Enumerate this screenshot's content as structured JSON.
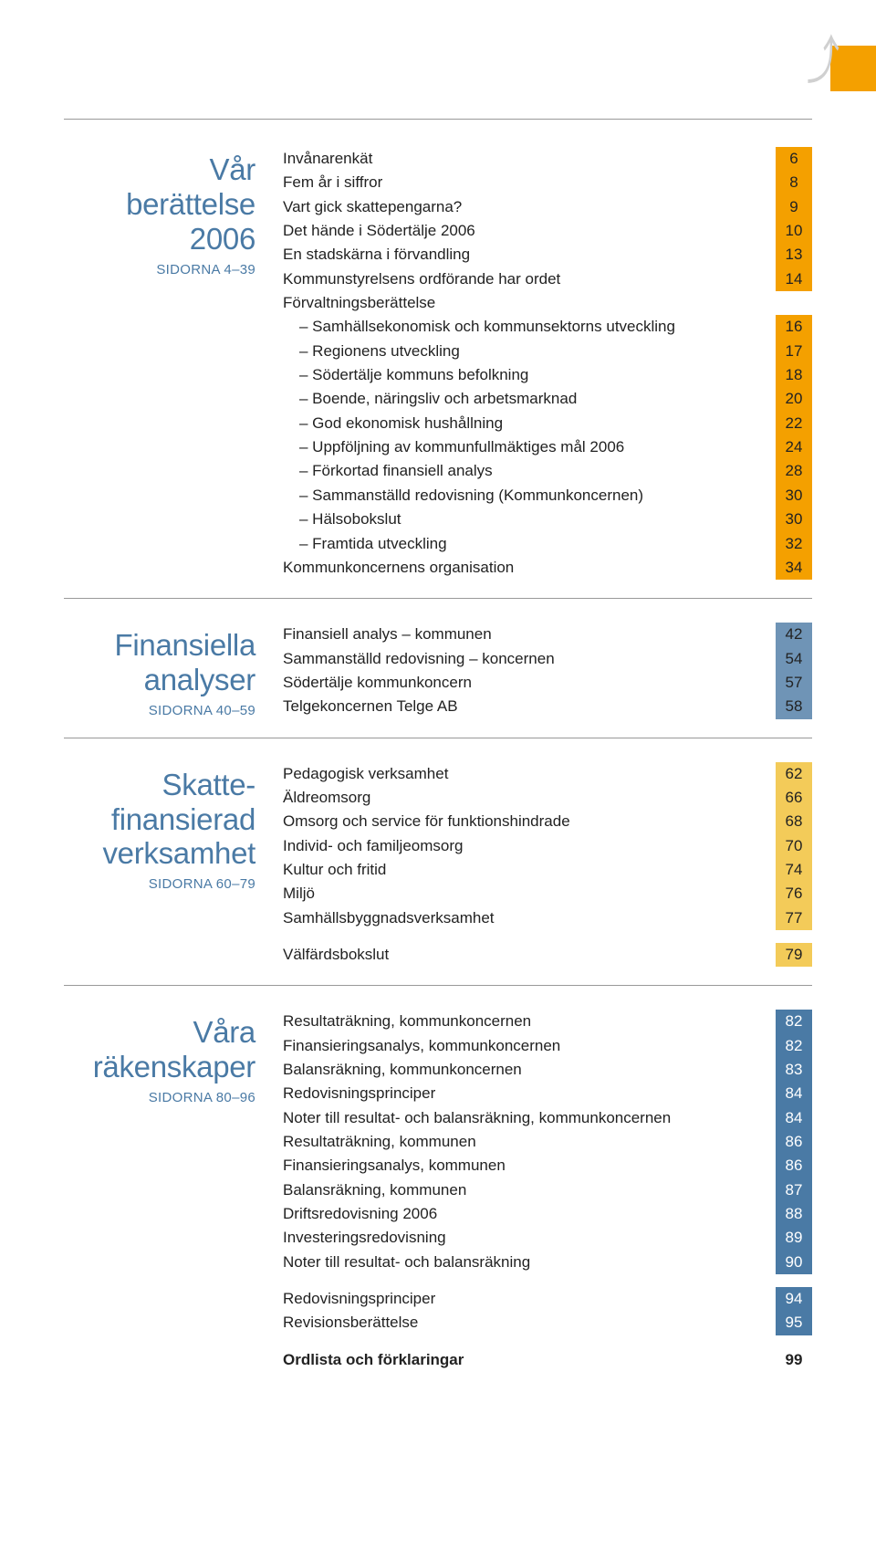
{
  "sections": [
    {
      "title_lines": [
        "Vår",
        "berättelse",
        "2006"
      ],
      "subtitle": "SIDORNA 4–39",
      "page_color_class": "page-orange",
      "rows": [
        {
          "label": "Invånarenkät",
          "page": "6"
        },
        {
          "label": "Fem år i siffror",
          "page": "8"
        },
        {
          "label": "Vart gick skattepengarna?",
          "page": "9"
        },
        {
          "label": "Det hände i Södertälje 2006",
          "page": "10"
        },
        {
          "label": "En stadskärna i förvandling",
          "page": "13"
        },
        {
          "label": "Kommunstyrelsens ordförande har ordet",
          "page": "14"
        },
        {
          "label": "Förvaltningsberättelse",
          "noheader": true
        },
        {
          "label": "– Samhällsekonomisk och kommunsektorns utveckling",
          "page": "16",
          "indent": true
        },
        {
          "label": "– Regionens utveckling",
          "page": "17",
          "indent": true
        },
        {
          "label": "– Södertälje kommuns befolkning",
          "page": "18",
          "indent": true
        },
        {
          "label": "– Boende, näringsliv och arbetsmarknad",
          "page": "20",
          "indent": true
        },
        {
          "label": "– God ekonomisk hushållning",
          "page": "22",
          "indent": true
        },
        {
          "label": "– Uppföljning av kommunfullmäktiges mål 2006",
          "page": "24",
          "indent": true
        },
        {
          "label": "– Förkortad finansiell analys",
          "page": "28",
          "indent": true
        },
        {
          "label": "– Sammanställd redovisning (Kommunkoncernen)",
          "page": "30",
          "indent": true
        },
        {
          "label": "– Hälsobokslut",
          "page": "30",
          "indent": true
        },
        {
          "label": "– Framtida utveckling",
          "page": "32",
          "indent": true
        },
        {
          "label": "Kommunkoncernens organisation",
          "page": "34"
        }
      ]
    },
    {
      "title_lines": [
        "Finansiella",
        "analyser"
      ],
      "subtitle": "SIDORNA 40–59",
      "page_color_class": "page-blue",
      "rows": [
        {
          "label": "Finansiell analys – kommunen",
          "page": "42"
        },
        {
          "label": "Sammanställd redovisning – koncernen",
          "page": "54"
        },
        {
          "label": "Södertälje kommunkoncern",
          "page": "57"
        },
        {
          "label": "Telgekoncernen Telge AB",
          "page": "58"
        }
      ]
    },
    {
      "title_lines": [
        "Skatte-",
        "finansierad",
        "verksamhet"
      ],
      "subtitle": "SIDORNA 60–79",
      "page_color_class": "page-yellow",
      "rows": [
        {
          "label": "Pedagogisk verksamhet",
          "page": "62"
        },
        {
          "label": "Äldreomsorg",
          "page": "66"
        },
        {
          "label": "Omsorg och service för funktionshindrade",
          "page": "68"
        },
        {
          "label": "Individ- och familjeomsorg",
          "page": "70"
        },
        {
          "label": "Kultur och fritid",
          "page": "74"
        },
        {
          "label": "Miljö",
          "page": "76"
        },
        {
          "label": "Samhällsbyggnadsverksamhet",
          "page": "77"
        },
        {
          "spacer": true
        },
        {
          "label": "Välfärdsbokslut",
          "page": "79"
        }
      ]
    },
    {
      "title_lines": [
        "Våra",
        "räkenskaper"
      ],
      "subtitle": "SIDORNA 80–96",
      "page_color_class": "page-darkblue",
      "rows": [
        {
          "label": "Resultaträkning, kommunkoncernen",
          "page": "82"
        },
        {
          "label": "Finansieringsanalys, kommunkoncernen",
          "page": "82"
        },
        {
          "label": "Balansräkning, kommunkoncernen",
          "page": "83"
        },
        {
          "label": "Redovisningsprinciper",
          "page": "84"
        },
        {
          "label": "Noter till resultat- och balansräkning, kommunkoncernen",
          "page": "84"
        },
        {
          "label": "Resultaträkning, kommunen",
          "page": "86"
        },
        {
          "label": "Finansieringsanalys, kommunen",
          "page": "86"
        },
        {
          "label": "Balansräkning, kommunen",
          "page": "87"
        },
        {
          "label": "Driftsredovisning 2006",
          "page": "88"
        },
        {
          "label": "Investeringsredovisning",
          "page": "89"
        },
        {
          "label": "Noter till resultat- och balansräkning",
          "page": "90"
        },
        {
          "spacer": true
        },
        {
          "label": "Redovisningsprinciper",
          "page": "94"
        },
        {
          "label": "Revisionsberättelse",
          "page": "95"
        },
        {
          "spacer": true
        },
        {
          "label": "Ordlista och förklaringar",
          "page": "99",
          "bold": true,
          "plainpage": true
        }
      ]
    }
  ]
}
